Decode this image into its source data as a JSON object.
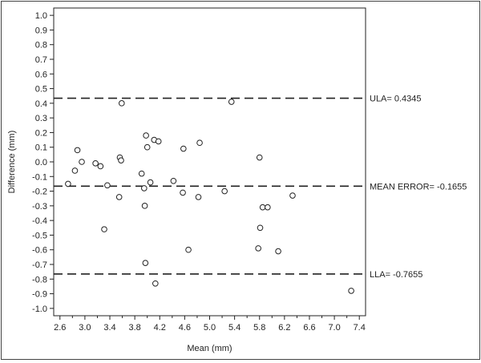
{
  "chart_data": {
    "type": "scatter",
    "title": "",
    "xlabel": "Mean (mm)",
    "ylabel": "Difference (mm)",
    "xlim": [
      2.5,
      7.5
    ],
    "ylim": [
      -1.05,
      1.05
    ],
    "x_ticks": [
      2.6,
      2.8,
      3.0,
      3.2,
      3.4,
      3.6,
      3.8,
      4.0,
      4.2,
      4.4,
      4.6,
      4.8,
      5.0,
      5.2,
      5.4,
      5.6,
      5.8,
      6.0,
      6.2,
      6.4,
      6.6,
      6.8,
      7.0,
      7.2,
      7.4
    ],
    "x_tick_labels": [
      "2.6",
      "",
      "3.0",
      "",
      "3.4",
      "",
      "3.8",
      "",
      "4.2",
      "",
      "4.6",
      "",
      "5.0",
      "",
      "5.4",
      "",
      "5.8",
      "",
      "6.2",
      "",
      "6.6",
      "",
      "7.0",
      "",
      "7.4"
    ],
    "y_ticks": [
      1.0,
      0.9,
      0.8,
      0.7,
      0.6,
      0.5,
      0.4,
      0.3,
      0.2,
      0.1,
      0.0,
      -0.1,
      -0.2,
      -0.3,
      -0.4,
      -0.5,
      -0.6,
      -0.7,
      -0.8,
      -0.9,
      -1.0
    ],
    "y_tick_labels": [
      "1.0",
      "0.9",
      "0.8",
      "0.7",
      "0.6",
      "0.5",
      "0.4",
      "0.3",
      "0.2",
      "0.1",
      "0.0",
      "-0.1",
      "-0.2",
      "-0.3",
      "-0.4",
      "-0.5",
      "-0.6",
      "-0.7",
      "-0.8",
      "-0.9",
      "-1.0"
    ],
    "grid": false,
    "reference_lines": [
      {
        "label": "ULA= 0.4345",
        "y": 0.4345
      },
      {
        "label": "MEAN ERROR= -0.1655",
        "y": -0.1655
      },
      {
        "label": "LLA= -0.7655",
        "y": -0.7655
      }
    ],
    "points": [
      {
        "x": 2.73,
        "y": -0.15
      },
      {
        "x": 2.84,
        "y": -0.06
      },
      {
        "x": 2.88,
        "y": 0.08
      },
      {
        "x": 2.95,
        "y": 0.0
      },
      {
        "x": 3.17,
        "y": -0.01
      },
      {
        "x": 3.25,
        "y": -0.03
      },
      {
        "x": 3.31,
        "y": -0.46
      },
      {
        "x": 3.36,
        "y": -0.16
      },
      {
        "x": 3.55,
        "y": -0.24
      },
      {
        "x": 3.56,
        "y": 0.03
      },
      {
        "x": 3.58,
        "y": 0.01
      },
      {
        "x": 3.59,
        "y": 0.4
      },
      {
        "x": 3.91,
        "y": -0.08
      },
      {
        "x": 3.95,
        "y": -0.18
      },
      {
        "x": 3.96,
        "y": -0.3
      },
      {
        "x": 3.97,
        "y": -0.69
      },
      {
        "x": 3.98,
        "y": 0.18
      },
      {
        "x": 4.0,
        "y": 0.1
      },
      {
        "x": 4.05,
        "y": -0.14
      },
      {
        "x": 4.11,
        "y": 0.15
      },
      {
        "x": 4.13,
        "y": -0.83
      },
      {
        "x": 4.18,
        "y": 0.14
      },
      {
        "x": 4.42,
        "y": -0.13
      },
      {
        "x": 4.57,
        "y": -0.21
      },
      {
        "x": 4.58,
        "y": 0.09
      },
      {
        "x": 4.66,
        "y": -0.6
      },
      {
        "x": 4.82,
        "y": -0.24
      },
      {
        "x": 4.84,
        "y": 0.13
      },
      {
        "x": 5.24,
        "y": -0.2
      },
      {
        "x": 5.35,
        "y": 0.41
      },
      {
        "x": 5.78,
        "y": -0.59
      },
      {
        "x": 5.8,
        "y": 0.03
      },
      {
        "x": 5.81,
        "y": -0.45
      },
      {
        "x": 5.85,
        "y": -0.31
      },
      {
        "x": 5.93,
        "y": -0.31
      },
      {
        "x": 6.1,
        "y": -0.61
      },
      {
        "x": 6.33,
        "y": -0.23
      },
      {
        "x": 7.27,
        "y": -0.88
      }
    ]
  }
}
